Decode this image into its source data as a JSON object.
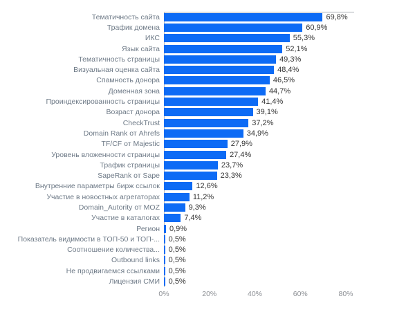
{
  "chart_data": {
    "type": "bar",
    "orientation": "horizontal",
    "title": "",
    "xlabel": "",
    "ylabel": "",
    "grid": "off",
    "legend": "none",
    "xlim": [
      0,
      83.6
    ],
    "x_ticks": [
      {
        "label": "0%",
        "value": 0
      },
      {
        "label": "20%",
        "value": 20
      },
      {
        "label": "40%",
        "value": 40
      },
      {
        "label": "60%",
        "value": 60
      },
      {
        "label": "80%",
        "value": 80
      }
    ],
    "categories": [
      "Тематичность сайта",
      "Трафик домена",
      "ИКС",
      "Язык сайта",
      "Тематичность страницы",
      "Визуальная оценка сайта",
      "Спамность донора",
      "Доменная зона",
      "Проиндексированность страницы",
      "Возраст донора",
      "CheckTrust",
      "Domain Rank от Ahrefs",
      "TF/CF от Majestic",
      "Уровень вложенности страницы",
      "Трафик страницы",
      "SapeRank от Sape",
      "Внутренние параметры бирж ссылок",
      "Участие в новостных агрегаторах",
      "Domain_Autority от MOZ",
      "Участие в каталогах",
      "Регион",
      "Показатель видимости в ТОП-50 и ТОП-...",
      "Соотношение количества...",
      "Outbound links",
      "Не продвигаемся ссылками",
      "Лицензия СМИ"
    ],
    "values": [
      69.8,
      60.9,
      55.3,
      52.1,
      49.3,
      48.4,
      46.5,
      44.7,
      41.4,
      39.1,
      37.2,
      34.9,
      27.9,
      27.4,
      23.7,
      23.3,
      12.6,
      11.2,
      9.3,
      7.4,
      0.9,
      0.5,
      0.5,
      0.5,
      0.5,
      0.5
    ],
    "value_labels": [
      "69,8%",
      "60,9%",
      "55,3%",
      "52,1%",
      "49,3%",
      "48,4%",
      "46,5%",
      "44,7%",
      "41,4%",
      "39,1%",
      "37,2%",
      "34,9%",
      "27,9%",
      "27,4%",
      "23,7%",
      "23,3%",
      "12,6%",
      "11,2%",
      "9,3%",
      "7,4%",
      "0,9%",
      "0,5%",
      "0,5%",
      "0,5%",
      "0,5%",
      "0,5%"
    ],
    "colors": {
      "bar": "#0d6bf5",
      "category_label": "#6e7a87",
      "value_label": "#333333",
      "axis_tick": "#8c8f94",
      "axis_line": "#a9adb3"
    }
  }
}
